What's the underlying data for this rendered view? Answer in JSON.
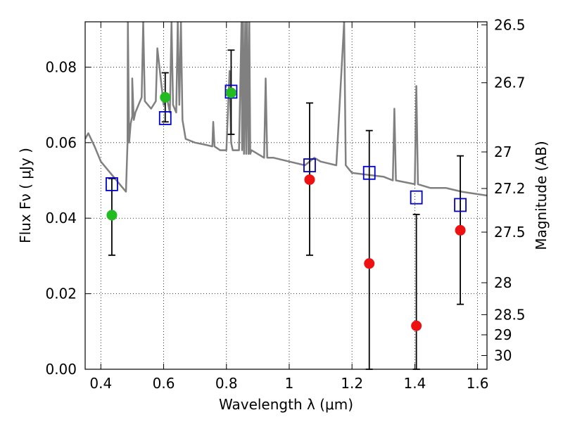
{
  "chart_data": {
    "type": "scatter",
    "xlabel": "Wavelength  λ (μm)",
    "ylabel": "Flux  Fν  ( μJy )",
    "ylabel_right": "Magnitude (AB)",
    "xlim": [
      0.35,
      1.63
    ],
    "ylim": [
      0.0,
      0.092
    ],
    "grid": true,
    "legend": "none",
    "x_ticks": [
      0.4,
      0.6,
      0.8,
      1.0,
      1.2,
      1.4,
      1.6
    ],
    "x_tick_labels": [
      "0.4",
      "0.6",
      "0.8",
      "1",
      "1.2",
      "1.4",
      "1.6"
    ],
    "y_ticks": [
      0.0,
      0.02,
      0.04,
      0.06,
      0.08
    ],
    "y_tick_labels": [
      "0.00",
      "0.02",
      "0.04",
      "0.06",
      "0.08"
    ],
    "right_ticks": [
      {
        "label": "26.5",
        "mag": 26.5
      },
      {
        "label": "26.7",
        "mag": 26.7
      },
      {
        "label": "27",
        "mag": 27.0
      },
      {
        "label": "27.2",
        "mag": 27.2
      },
      {
        "label": "27.5",
        "mag": 27.5
      },
      {
        "label": "28",
        "mag": 28.0
      },
      {
        "label": "28.5",
        "mag": 28.5
      },
      {
        "label": "29",
        "mag": 29.0
      },
      {
        "label": "30",
        "mag": 30.0
      }
    ],
    "series": [
      {
        "marker": "line",
        "color": "#808080",
        "x": [
          0.35,
          0.36,
          0.38,
          0.4,
          0.43,
          0.46,
          0.48,
          0.485,
          0.486,
          0.49,
          0.495,
          0.5,
          0.5,
          0.505,
          0.51,
          0.52,
          0.53,
          0.535,
          0.54,
          0.56,
          0.575,
          0.58,
          0.6,
          0.61,
          0.62,
          0.625,
          0.63,
          0.64,
          0.645,
          0.65,
          0.655,
          0.66,
          0.67,
          0.7,
          0.73,
          0.755,
          0.758,
          0.762,
          0.78,
          0.8,
          0.81,
          0.815,
          0.82,
          0.84,
          0.848,
          0.85,
          0.853,
          0.856,
          0.86,
          0.863,
          0.866,
          0.87,
          0.873,
          0.876,
          0.88,
          0.9,
          0.92,
          0.925,
          0.93,
          0.95,
          1.0,
          1.05,
          1.08,
          1.1,
          1.15,
          1.175,
          1.18,
          1.19,
          1.2,
          1.3,
          1.33,
          1.335,
          1.34,
          1.4,
          1.405,
          1.41,
          1.45,
          1.5,
          1.55,
          1.63
        ],
        "y": [
          0.061,
          0.0625,
          0.059,
          0.055,
          0.052,
          0.049,
          0.047,
          0.06,
          0.092,
          0.06,
          0.065,
          0.067,
          0.077,
          0.066,
          0.068,
          0.07,
          0.072,
          0.092,
          0.071,
          0.069,
          0.071,
          0.085,
          0.07,
          0.072,
          0.068,
          0.092,
          0.07,
          0.068,
          0.092,
          0.07,
          0.092,
          0.066,
          0.061,
          0.06,
          0.0595,
          0.059,
          0.0655,
          0.059,
          0.058,
          0.058,
          0.079,
          0.06,
          0.058,
          0.058,
          0.092,
          0.058,
          0.092,
          0.057,
          0.092,
          0.057,
          0.092,
          0.057,
          0.092,
          0.057,
          0.058,
          0.057,
          0.056,
          0.077,
          0.056,
          0.056,
          0.055,
          0.054,
          0.056,
          0.055,
          0.054,
          0.092,
          0.054,
          0.053,
          0.052,
          0.051,
          0.05,
          0.069,
          0.05,
          0.049,
          0.075,
          0.049,
          0.048,
          0.048,
          0.047,
          0.046
        ]
      },
      {
        "marker": "open-square",
        "color": "#0000cc",
        "x": [
          0.435,
          0.605,
          0.815,
          1.065,
          1.255,
          1.405,
          1.545
        ],
        "y": [
          0.049,
          0.0665,
          0.0735,
          0.054,
          0.052,
          0.0455,
          0.0435
        ]
      },
      {
        "marker": "filled-circle",
        "color": "#22bb22",
        "x": [
          0.435,
          0.605,
          0.815
        ],
        "y": [
          0.0408,
          0.072,
          0.0732
        ]
      },
      {
        "marker": "filled-circle",
        "color": "#ee1111",
        "x": [
          1.065,
          1.255,
          1.405,
          1.545
        ],
        "y": [
          0.0502,
          0.028,
          0.0115,
          0.0368
        ]
      }
    ],
    "error_bars": [
      {
        "x": 0.435,
        "low": 0.0302,
        "high": 0.0505
      },
      {
        "x": 0.605,
        "low": 0.0655,
        "high": 0.0785
      },
      {
        "x": 0.815,
        "low": 0.0622,
        "high": 0.0845
      },
      {
        "x": 1.065,
        "low": 0.0302,
        "high": 0.0705
      },
      {
        "x": 1.255,
        "low": 0.0,
        "high": 0.0632
      },
      {
        "x": 1.405,
        "low": 0.0,
        "high": 0.041
      },
      {
        "x": 1.545,
        "low": 0.0172,
        "high": 0.0565
      }
    ]
  }
}
